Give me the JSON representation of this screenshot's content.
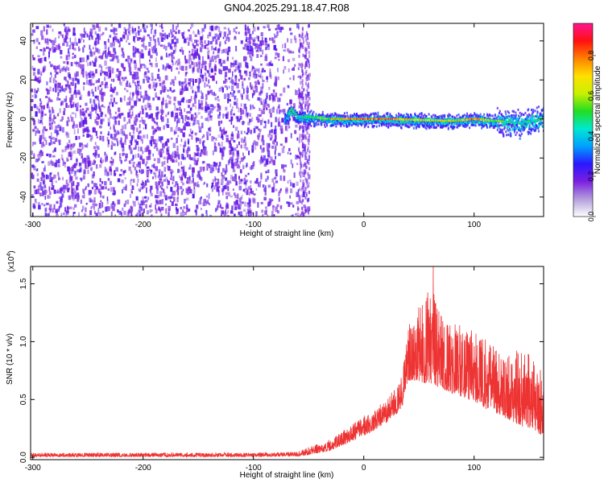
{
  "figure_title": "GN04.2025.291.18.47.R08",
  "chart_data": [
    {
      "type": "heatmap",
      "title": "GN04.2025.291.18.47.R08",
      "xlabel": "Height of straight line (km)",
      "ylabel": "Frequency (Hz)",
      "xlim": [
        -302,
        163
      ],
      "ylim": [
        -50,
        49
      ],
      "xticks": [
        -300,
        -200,
        -100,
        0,
        100
      ],
      "xtick_labels": [
        "-300",
        "-200",
        "-100",
        "0",
        "100"
      ],
      "yticks": [
        -40,
        -20,
        0,
        20,
        40
      ],
      "ytick_labels": [
        "-40",
        "-20",
        "0",
        "20",
        "40"
      ],
      "grid": false,
      "noise_region_km": [
        -302,
        -50
      ],
      "signal_band": {
        "start_km": -72,
        "end_km": 163,
        "center_freq_hz": 0,
        "points": [
          {
            "x": -72,
            "freq": 0,
            "amp": 0.3
          },
          {
            "x": -66,
            "freq": 5,
            "amp": 0.55
          },
          {
            "x": -60,
            "freq": 1,
            "amp": 0.5
          },
          {
            "x": -50,
            "freq": 1,
            "amp": 0.5
          },
          {
            "x": -40,
            "freq": 0.5,
            "amp": 0.6
          },
          {
            "x": -30,
            "freq": 0,
            "amp": 0.7
          },
          {
            "x": -10,
            "freq": 0,
            "amp": 0.8
          },
          {
            "x": 20,
            "freq": 0,
            "amp": 0.9
          },
          {
            "x": 50,
            "freq": -0.5,
            "amp": 0.7
          },
          {
            "x": 80,
            "freq": -1,
            "amp": 0.7
          },
          {
            "x": 100,
            "freq": 0,
            "amp": 0.85
          },
          {
            "x": 120,
            "freq": -1,
            "amp": 0.6
          },
          {
            "x": 140,
            "freq": -2,
            "amp": 0.45
          },
          {
            "x": 163,
            "freq": 0,
            "amp": 0.55
          }
        ]
      },
      "colorbar": {
        "label": "Normalized spectral amplitude",
        "range": [
          0,
          0.96
        ],
        "ticks": [
          0.0,
          0.2,
          0.4,
          0.6,
          0.8
        ],
        "tick_labels": [
          "0.0",
          "0.2",
          "0.4",
          "0.6",
          "0.8"
        ],
        "colormap": [
          "#ffffff",
          "#b39ddb",
          "#7b1fe0",
          "#2a18ff",
          "#00a0ff",
          "#00e8d0",
          "#22dd22",
          "#c8f000",
          "#ffe000",
          "#ff8000",
          "#ff1010",
          "#ff1493"
        ]
      }
    },
    {
      "type": "line",
      "xlabel": "Height of straight line (km)",
      "ylabel": "SNR (10 * v/v)",
      "scale_label": "(x10",
      "scale_exponent": "4",
      "scale_suffix": ")",
      "xlim": [
        -302,
        163
      ],
      "ylim": [
        -0.02,
        1.65
      ],
      "xticks": [
        -300,
        -200,
        -100,
        0,
        100
      ],
      "xtick_labels": [
        "-300",
        "-200",
        "-100",
        "0",
        "100"
      ],
      "yticks": [
        0.0,
        0.5,
        1.0,
        1.5
      ],
      "ytick_labels": [
        "0.0",
        "0.5",
        "1.0",
        "1.5"
      ],
      "color": "#ee3333",
      "grid": false,
      "envelope": {
        "x": [
          -302,
          -100,
          -60,
          -50,
          -40,
          -30,
          -20,
          -10,
          0,
          10,
          20,
          30,
          35,
          38,
          40,
          50,
          60,
          70,
          80,
          90,
          100,
          110,
          120,
          130,
          140,
          150,
          163
        ],
        "base": [
          0.005,
          0.005,
          0.01,
          0.02,
          0.04,
          0.06,
          0.1,
          0.14,
          0.18,
          0.24,
          0.3,
          0.38,
          0.44,
          0.6,
          0.66,
          0.66,
          0.62,
          0.6,
          0.55,
          0.52,
          0.48,
          0.42,
          0.38,
          0.33,
          0.28,
          0.24,
          0.18
        ],
        "peak": [
          0.04,
          0.04,
          0.05,
          0.09,
          0.12,
          0.16,
          0.22,
          0.3,
          0.36,
          0.42,
          0.5,
          0.62,
          0.72,
          0.98,
          1.15,
          1.3,
          1.48,
          1.3,
          1.22,
          1.12,
          1.1,
          1.02,
          0.96,
          0.95,
          0.92,
          0.92,
          0.88
        ]
      },
      "max_value": 1.66,
      "max_at_km": 63
    }
  ]
}
